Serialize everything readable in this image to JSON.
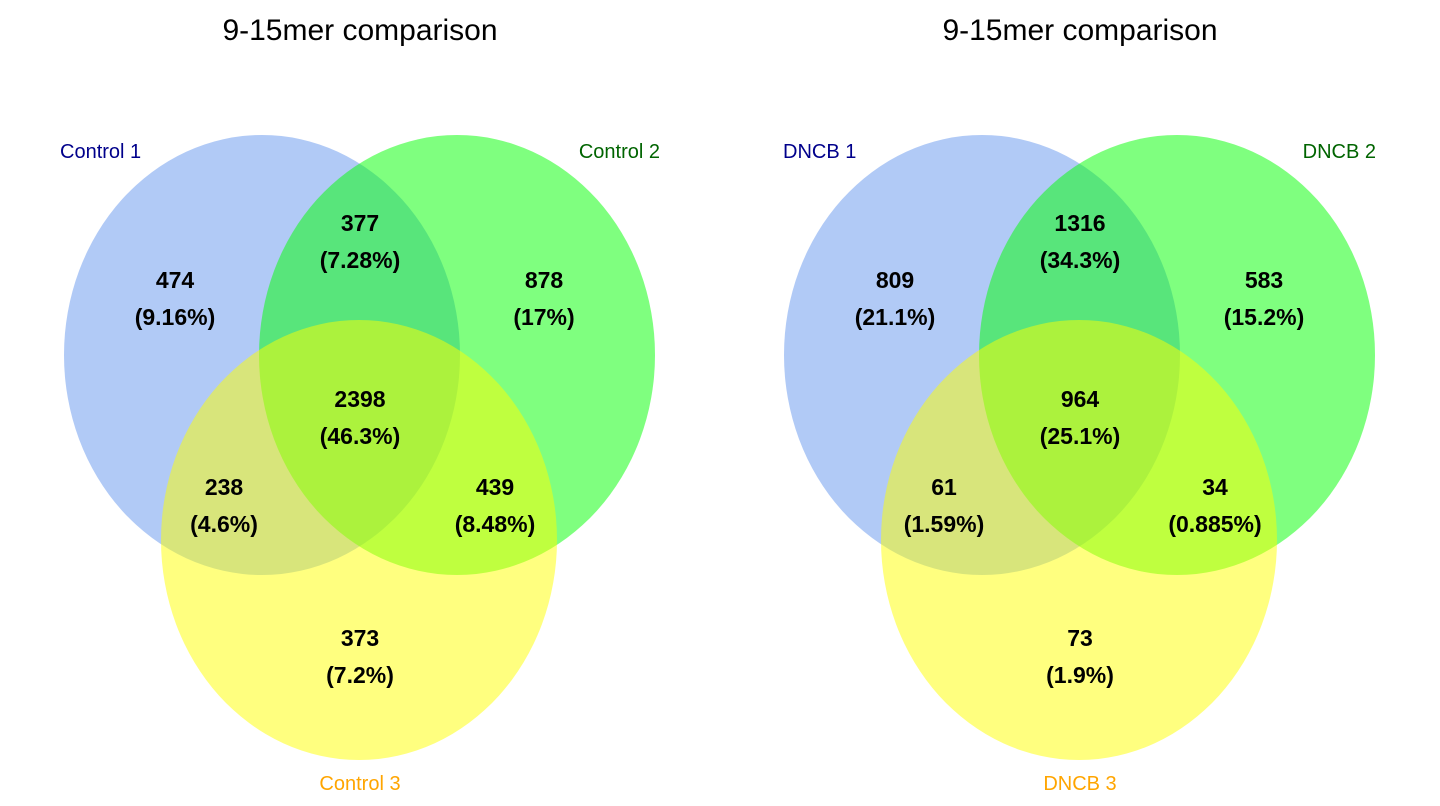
{
  "colors": {
    "set1_fill": "#6495ED",
    "set2_fill": "#00FF00",
    "set3_fill": "#FFFF00",
    "set1_label": "#00008B",
    "set2_label": "#006400",
    "set3_label": "#FFA500",
    "text": "#000000",
    "background": "#FFFFFF"
  },
  "diagrams": [
    {
      "title": "9-15mer comparison",
      "sets": [
        "Control 1",
        "Control 2",
        "Control 3"
      ],
      "regions": [
        {
          "region": "only_1",
          "count": "474",
          "percent": "(9.16%)"
        },
        {
          "region": "1_and_2",
          "count": "377",
          "percent": "(7.28%)"
        },
        {
          "region": "only_2",
          "count": "878",
          "percent": "(17%)"
        },
        {
          "region": "1_2_3",
          "count": "2398",
          "percent": "(46.3%)"
        },
        {
          "region": "1_and_3",
          "count": "238",
          "percent": "(4.6%)"
        },
        {
          "region": "2_and_3",
          "count": "439",
          "percent": "(8.48%)"
        },
        {
          "region": "only_3",
          "count": "373",
          "percent": "(7.2%)"
        }
      ]
    },
    {
      "title": "9-15mer comparison",
      "sets": [
        "DNCB 1",
        "DNCB 2",
        "DNCB 3"
      ],
      "regions": [
        {
          "region": "only_1",
          "count": "809",
          "percent": "(21.1%)"
        },
        {
          "region": "1_and_2",
          "count": "1316",
          "percent": "(34.3%)"
        },
        {
          "region": "only_2",
          "count": "583",
          "percent": "(15.2%)"
        },
        {
          "region": "1_2_3",
          "count": "964",
          "percent": "(25.1%)"
        },
        {
          "region": "1_and_3",
          "count": "61",
          "percent": "(1.59%)"
        },
        {
          "region": "2_and_3",
          "count": "34",
          "percent": "(0.885%)"
        },
        {
          "region": "only_3",
          "count": "73",
          "percent": "(1.9%)"
        }
      ]
    }
  ]
}
